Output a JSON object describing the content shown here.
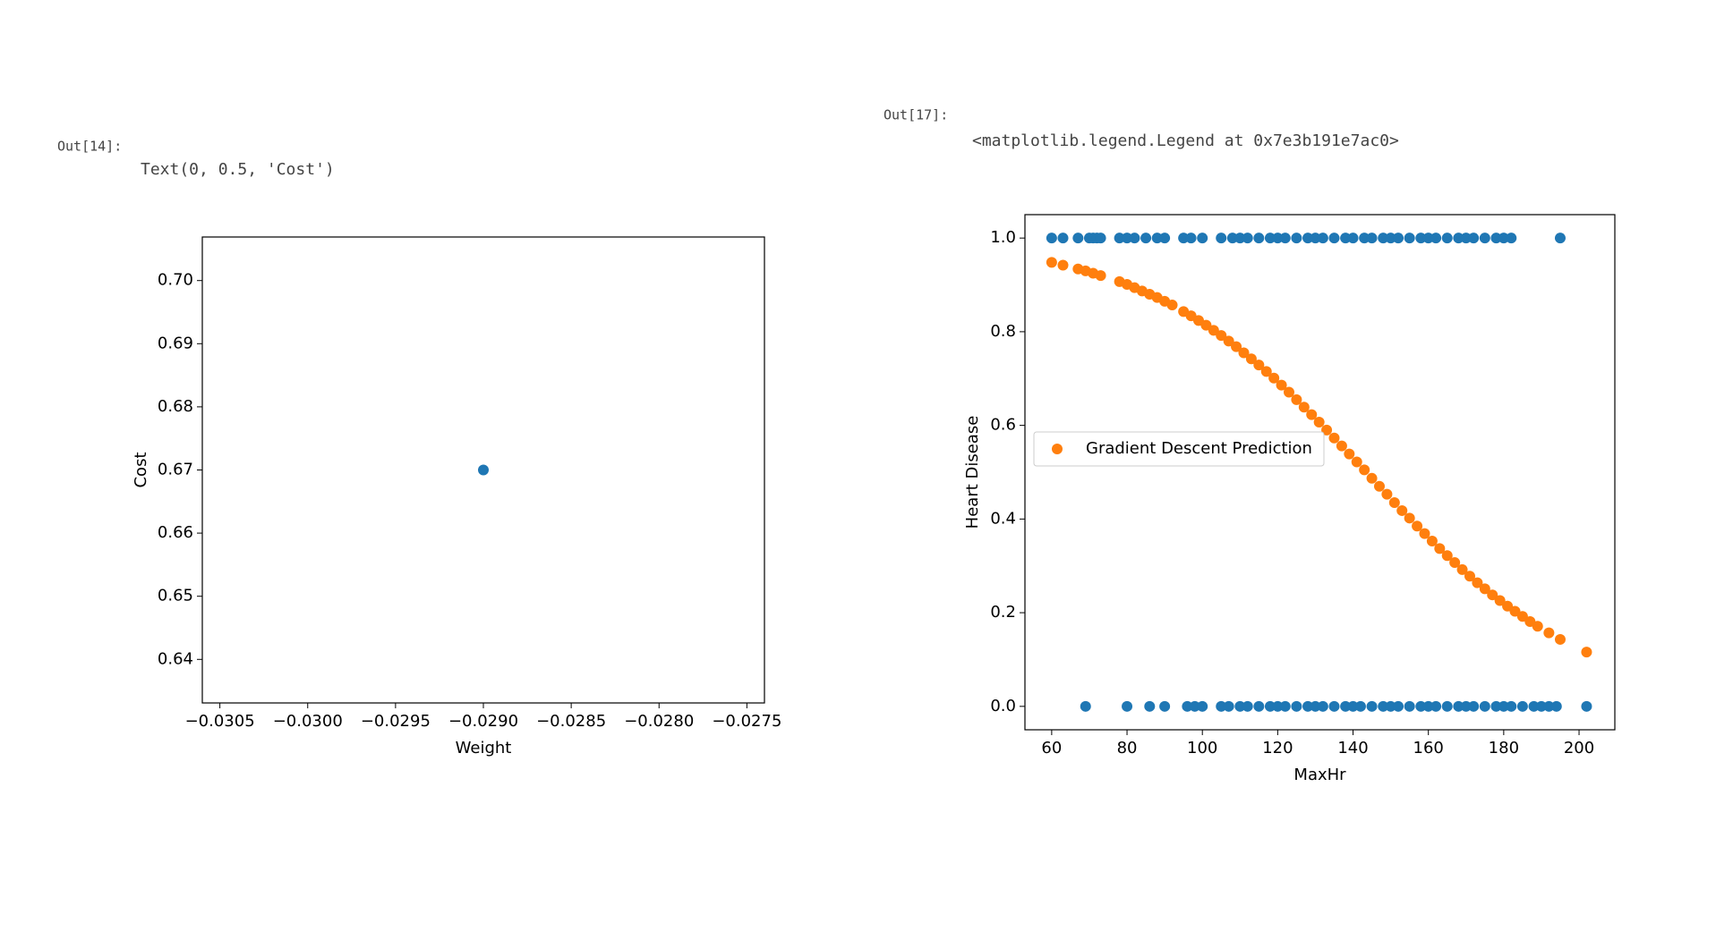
{
  "cells": [
    {
      "prompt": "Out[14]:",
      "text": "Text(0, 0.5, 'Cost')"
    },
    {
      "prompt": "Out[17]:",
      "text": "<matplotlib.legend.Legend at 0x7e3b191e7ac0>"
    }
  ],
  "chart_data": [
    {
      "type": "scatter",
      "xlabel": "Weight",
      "ylabel": "Cost",
      "series": [
        {
          "color": "#1f77b4",
          "x": [
            -0.029
          ],
          "values": [
            0.67
          ]
        }
      ],
      "xlim": [
        -0.0306,
        -0.0274
      ],
      "ylim": [
        0.6331,
        0.7069
      ],
      "xticks": [
        {
          "value": -0.0305,
          "label": "−0.0305"
        },
        {
          "value": -0.03,
          "label": "−0.0300"
        },
        {
          "value": -0.0295,
          "label": "−0.0295"
        },
        {
          "value": -0.029,
          "label": "−0.0290"
        },
        {
          "value": -0.0285,
          "label": "−0.0285"
        },
        {
          "value": -0.028,
          "label": "−0.0280"
        },
        {
          "value": -0.0275,
          "label": "−0.0275"
        }
      ],
      "yticks": [
        0.64,
        0.65,
        0.66,
        0.67,
        0.68,
        0.69,
        {
          "value": 0.7,
          "label": "0.70"
        }
      ]
    },
    {
      "type": "scatter",
      "xlabel": "MaxHr",
      "ylabel": "Heart Disease",
      "legend": "center left",
      "series": [
        {
          "color": "#1f77b4",
          "x": [
            60,
            63,
            67,
            70,
            71,
            72,
            73,
            78,
            80,
            82,
            85,
            88,
            90,
            95,
            97,
            100,
            105,
            108,
            110,
            112,
            115,
            118,
            120,
            122,
            125,
            128,
            130,
            132,
            135,
            138,
            140,
            143,
            145,
            148,
            150,
            152,
            155,
            158,
            160,
            162,
            165,
            168,
            170,
            172,
            175,
            178,
            180,
            182,
            195,
            69,
            80,
            86,
            90,
            96,
            98,
            100,
            105,
            107,
            110,
            112,
            115,
            118,
            120,
            122,
            125,
            128,
            130,
            132,
            135,
            138,
            140,
            142,
            145,
            148,
            150,
            152,
            155,
            158,
            160,
            162,
            165,
            168,
            170,
            172,
            175,
            178,
            180,
            182,
            185,
            188,
            190,
            192,
            194,
            202
          ],
          "values": [
            1,
            1,
            1,
            1,
            1,
            1,
            1,
            1,
            1,
            1,
            1,
            1,
            1,
            1,
            1,
            1,
            1,
            1,
            1,
            1,
            1,
            1,
            1,
            1,
            1,
            1,
            1,
            1,
            1,
            1,
            1,
            1,
            1,
            1,
            1,
            1,
            1,
            1,
            1,
            1,
            1,
            1,
            1,
            1,
            1,
            1,
            1,
            1,
            1,
            0,
            0,
            0,
            0,
            0,
            0,
            0,
            0,
            0,
            0,
            0,
            0,
            0,
            0,
            0,
            0,
            0,
            0,
            0,
            0,
            0,
            0,
            0,
            0,
            0,
            0,
            0,
            0,
            0,
            0,
            0,
            0,
            0,
            0,
            0,
            0,
            0,
            0,
            0,
            0,
            0,
            0,
            0,
            0,
            0
          ]
        },
        {
          "name": "Gradient Descent Prediction",
          "color": "#ff7f0e",
          "x": [
            60,
            63,
            67,
            69,
            71,
            73,
            78,
            80,
            82,
            84,
            86,
            88,
            90,
            92,
            95,
            97,
            99,
            101,
            103,
            105,
            107,
            109,
            111,
            113,
            115,
            117,
            119,
            121,
            123,
            125,
            127,
            129,
            131,
            133,
            135,
            137,
            139,
            141,
            143,
            145,
            147,
            149,
            151,
            153,
            155,
            157,
            159,
            161,
            163,
            165,
            167,
            169,
            171,
            173,
            175,
            177,
            179,
            181,
            183,
            185,
            187,
            189,
            192,
            195,
            202
          ],
          "values": [
            0.948,
            0.942,
            0.934,
            0.93,
            0.925,
            0.92,
            0.907,
            0.901,
            0.894,
            0.887,
            0.88,
            0.873,
            0.865,
            0.857,
            0.843,
            0.834,
            0.824,
            0.814,
            0.803,
            0.792,
            0.78,
            0.768,
            0.755,
            0.742,
            0.729,
            0.715,
            0.701,
            0.686,
            0.671,
            0.655,
            0.639,
            0.623,
            0.607,
            0.59,
            0.573,
            0.556,
            0.539,
            0.522,
            0.505,
            0.487,
            0.47,
            0.453,
            0.435,
            0.418,
            0.402,
            0.385,
            0.369,
            0.353,
            0.337,
            0.322,
            0.307,
            0.292,
            0.278,
            0.264,
            0.251,
            0.238,
            0.226,
            0.214,
            0.203,
            0.192,
            0.181,
            0.171,
            0.157,
            0.143,
            0.116
          ]
        }
      ],
      "xlim": [
        52.9,
        209.5
      ],
      "ylim": [
        -0.05,
        1.05
      ],
      "xticks": [
        60,
        80,
        100,
        120,
        140,
        160,
        180,
        200
      ],
      "yticks": [
        {
          "value": 0,
          "label": "0.0"
        },
        {
          "value": 0.2,
          "label": "0.2"
        },
        {
          "value": 0.4,
          "label": "0.4"
        },
        {
          "value": 0.6,
          "label": "0.6"
        },
        {
          "value": 0.8,
          "label": "0.8"
        },
        {
          "value": 1,
          "label": "1.0"
        }
      ]
    }
  ]
}
